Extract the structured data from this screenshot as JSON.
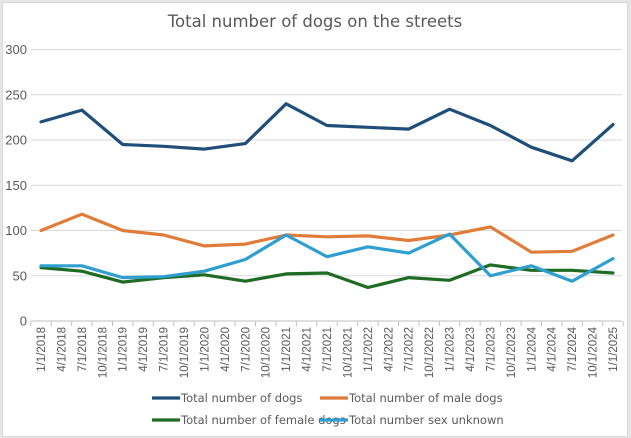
{
  "chart_data": {
    "type": "line",
    "title": "Total number of dogs on the streets",
    "xlabel": "",
    "ylabel": "",
    "ylim": [
      0,
      300
    ],
    "yticks": [
      0,
      50,
      100,
      150,
      200,
      250,
      300
    ],
    "grid": true,
    "legend_position": "bottom",
    "x_tick_labels": [
      "1/1/2018",
      "4/1/2018",
      "7/1/2018",
      "10/1/2018",
      "1/1/2019",
      "4/1/2019",
      "7/1/2019",
      "10/1/2019",
      "1/1/2020",
      "4/1/2020",
      "7/1/2020",
      "10/1/2020",
      "1/1/2021",
      "4/1/2021",
      "7/1/2021",
      "10/1/2021",
      "1/1/2022",
      "4/1/2022",
      "7/1/2022",
      "10/1/2022",
      "1/1/2023",
      "4/1/2023",
      "7/1/2023",
      "10/1/2023",
      "1/1/2024",
      "4/1/2024",
      "7/1/2024",
      "10/1/2024",
      "1/1/2025"
    ],
    "x": [
      "1/1/2018",
      "7/1/2018",
      "1/1/2019",
      "7/1/2019",
      "1/1/2020",
      "7/1/2020",
      "1/1/2021",
      "7/1/2021",
      "1/1/2022",
      "7/1/2022",
      "1/1/2023",
      "7/1/2023",
      "1/1/2024",
      "7/1/2024",
      "1/1/2025"
    ],
    "series": [
      {
        "name": "Total number of dogs",
        "color": "#1f4e79",
        "values": [
          220,
          233,
          195,
          193,
          190,
          196,
          240,
          216,
          214,
          212,
          234,
          216,
          192,
          177,
          217
        ]
      },
      {
        "name": "Total number of male dogs",
        "color": "#e07b39",
        "values": [
          100,
          118,
          100,
          95,
          83,
          85,
          95,
          93,
          94,
          89,
          95,
          104,
          76,
          77,
          95
        ]
      },
      {
        "name": "Total number of female dogs",
        "color": "#1e6b24",
        "values": [
          59,
          55,
          43,
          48,
          51,
          44,
          52,
          53,
          37,
          48,
          45,
          62,
          56,
          56,
          53
        ]
      },
      {
        "name": "Total number sex unknown",
        "color": "#2e9fd0",
        "values": [
          61,
          61,
          48,
          49,
          55,
          68,
          95,
          71,
          82,
          75,
          96,
          50,
          61,
          44,
          69
        ]
      }
    ]
  }
}
